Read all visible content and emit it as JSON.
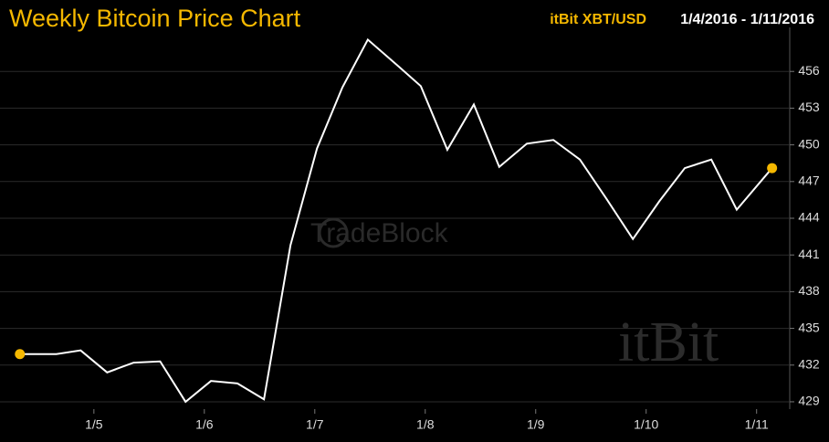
{
  "chart_data": {
    "type": "line",
    "title": "Weekly Bitcoin Price Chart",
    "subtitle": "itBit XBT/USD",
    "date_range": "1/4/2016 - 1/11/2016",
    "watermarks": [
      "TradeBlock",
      "itBit"
    ],
    "x": [
      4.33,
      4.66,
      4.88,
      5.12,
      5.36,
      5.6,
      5.83,
      6.06,
      6.3,
      6.54,
      6.78,
      7.02,
      7.25,
      7.48,
      7.76,
      7.96,
      8.2,
      8.44,
      8.67,
      8.92,
      9.16,
      9.4,
      9.64,
      9.88,
      10.12,
      10.35,
      10.59,
      10.82,
      11.14
    ],
    "values": [
      432.9,
      432.9,
      433.2,
      431.4,
      432.2,
      432.3,
      429.0,
      430.7,
      430.5,
      429.2,
      441.8,
      449.7,
      454.7,
      458.6,
      456.4,
      454.8,
      449.6,
      453.3,
      448.2,
      450.1,
      450.4,
      448.8,
      445.6,
      442.3,
      445.4,
      448.1,
      448.8,
      444.7,
      448.1
    ],
    "color": "#ffffff",
    "marker_color": "#f5b800",
    "xlim": [
      4.15,
      11.3
    ],
    "xticks": [
      {
        "value": 5,
        "label": "1/5"
      },
      {
        "value": 6,
        "label": "1/6"
      },
      {
        "value": 7,
        "label": "1/7"
      },
      {
        "value": 8,
        "label": "1/8"
      },
      {
        "value": 9,
        "label": "1/9"
      },
      {
        "value": 10,
        "label": "1/10"
      },
      {
        "value": 11,
        "label": "1/11"
      }
    ],
    "ylim": [
      428.4,
      459.6
    ],
    "yticks": [
      429,
      432,
      435,
      438,
      441,
      444,
      447,
      450,
      453,
      456
    ],
    "grid": true
  }
}
